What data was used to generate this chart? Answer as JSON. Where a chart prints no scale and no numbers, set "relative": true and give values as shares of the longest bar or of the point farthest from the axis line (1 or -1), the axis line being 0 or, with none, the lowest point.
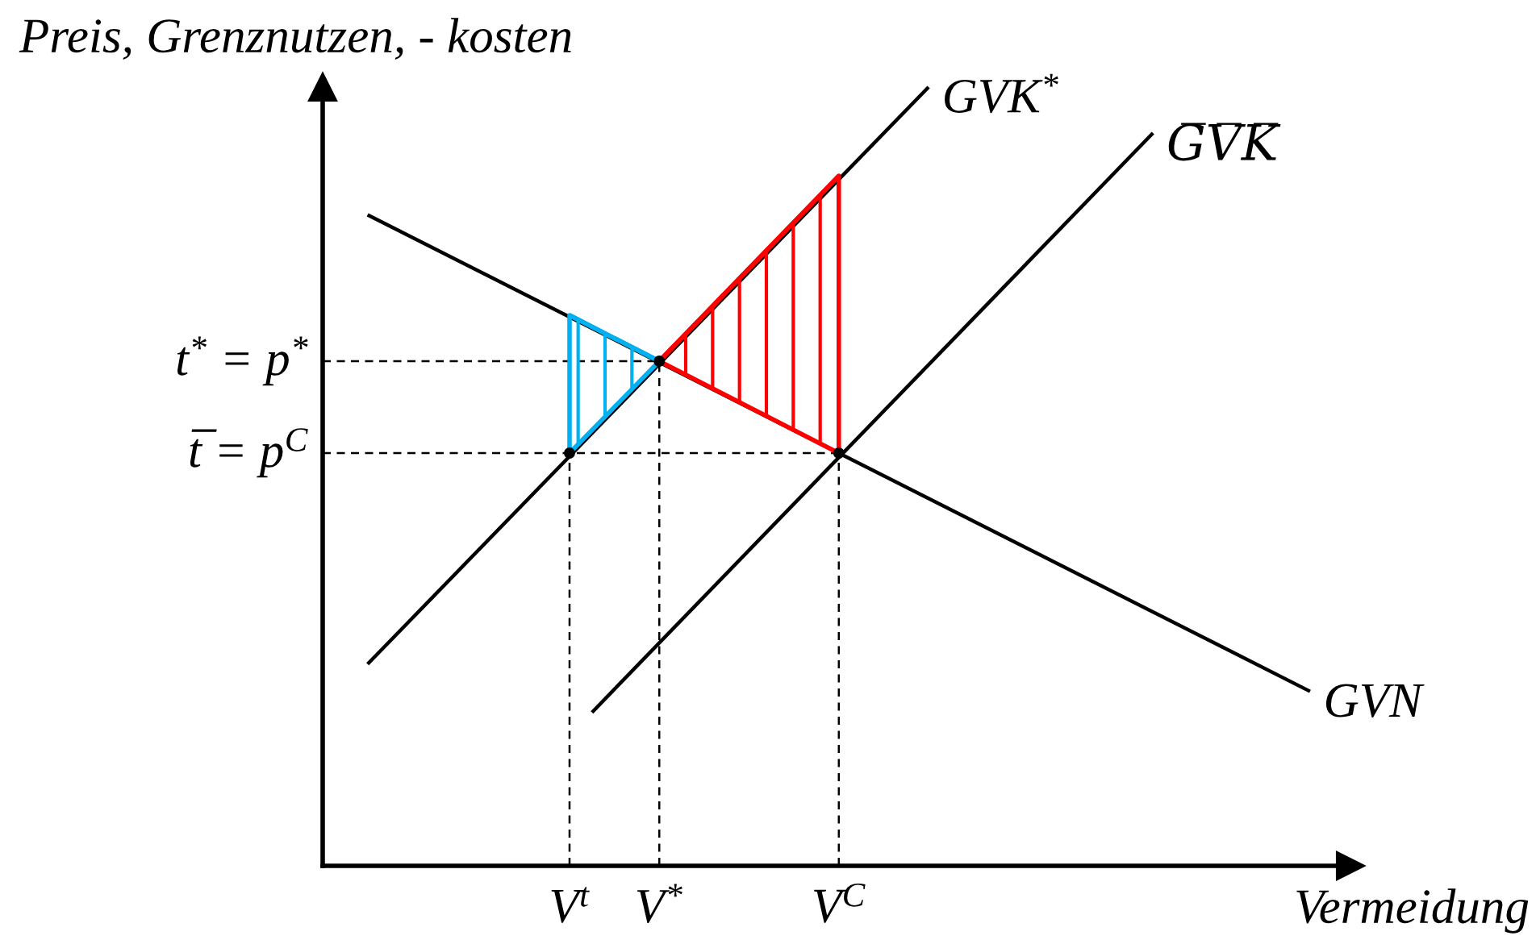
{
  "chart_data": {
    "type": "line",
    "relative": true,
    "line_style": "solid",
    "xlabel": "Vermeidung",
    "ylabel": "Preis, Grenznutzen, - kosten",
    "categories": [
      null,
      null,
      null,
      null,
      null,
      null,
      null,
      null,
      null,
      null,
      null,
      "V$^{t}$",
      null,
      null,
      null,
      "V$^{*}$",
      null,
      null,
      null,
      null,
      null,
      null,
      null,
      "V$^{C}$",
      null,
      null,
      null,
      null,
      null,
      null,
      null,
      null,
      null,
      null,
      null,
      null,
      null,
      null,
      null,
      null,
      null,
      null,
      null,
      null,
      null,
      null
    ],
    "series": [
      {
        "name": "GVN",
        "color": "#000000",
        "values": [
          null,
          null,
          0.836,
          null,
          null,
          null,
          null,
          null,
          null,
          null,
          null,
          null,
          null,
          null,
          null,
          null,
          null,
          null,
          null,
          null,
          null,
          null,
          null,
          null,
          null,
          null,
          null,
          null,
          null,
          null,
          null,
          null,
          null,
          null,
          null,
          null,
          null,
          null,
          null,
          null,
          null,
          null,
          null,
          null,
          0.224,
          null
        ]
      },
      {
        "name": "GVK$^{*}$",
        "color": "#000000",
        "values": [
          null,
          null,
          0.259,
          null,
          null,
          null,
          null,
          null,
          null,
          null,
          null,
          null,
          null,
          null,
          null,
          null,
          null,
          null,
          null,
          null,
          null,
          null,
          null,
          null,
          null,
          null,
          null,
          1.0,
          null,
          null,
          null,
          null,
          null,
          null,
          null,
          null,
          null,
          null,
          null,
          null,
          null,
          null,
          null,
          null,
          null,
          null
        ]
      },
      {
        "name": "G̅V̅K̅",
        "color": "#000000",
        "values": [
          null,
          null,
          null,
          null,
          null,
          null,
          null,
          null,
          null,
          null,
          null,
          null,
          0.197,
          null,
          null,
          null,
          null,
          null,
          null,
          null,
          null,
          null,
          null,
          null,
          null,
          null,
          null,
          null,
          null,
          null,
          null,
          null,
          null,
          null,
          null,
          null,
          null,
          0.941,
          null,
          null,
          null,
          null,
          null,
          null,
          null,
          null
        ]
      },
      {
        "name": "t$^{*}$ = p$^{*}$",
        "line_style": "dashed",
        "color": "#000000",
        "values": [
          0.648,
          null,
          null,
          null,
          null,
          null,
          null,
          null,
          null,
          null,
          null,
          null,
          null,
          null,
          null,
          0.648,
          null,
          null,
          null,
          null,
          null,
          null,
          null,
          null,
          null,
          null,
          null,
          null,
          null,
          null,
          null,
          null,
          null,
          null,
          null,
          null,
          null,
          null,
          null,
          null,
          null,
          null,
          null,
          null,
          null,
          null
        ]
      },
      {
        "name": "t̅ = p$^{C}$",
        "line_style": "dashed",
        "color": "#000000",
        "values": [
          0.53,
          null,
          null,
          null,
          null,
          null,
          null,
          null,
          null,
          null,
          null,
          null,
          null,
          null,
          null,
          null,
          null,
          null,
          null,
          null,
          null,
          null,
          null,
          0.53,
          null,
          null,
          null,
          null,
          null,
          null,
          null,
          null,
          null,
          null,
          null,
          null,
          null,
          null,
          null,
          null,
          null,
          null,
          null,
          null,
          null,
          null
        ]
      },
      {
        "type": "lollipop",
        "line_style": "dashed",
        "marker": "circle",
        "color": "#000000",
        "values": [
          null,
          null,
          null,
          null,
          null,
          null,
          null,
          null,
          null,
          null,
          null,
          0.53,
          null,
          null,
          null,
          0.648,
          null,
          null,
          null,
          null,
          null,
          null,
          null,
          0.53,
          null,
          null,
          null,
          null,
          null,
          null,
          null,
          null,
          null,
          null,
          null,
          null,
          null,
          null,
          null,
          null,
          null,
          null,
          null,
          null,
          null,
          null
        ]
      },
      {
        "type": "line",
        "color": "#00b0f0",
        "values": [
          null,
          null,
          null,
          null,
          null,
          null,
          null,
          null,
          null,
          null,
          null,
          0.707,
          null,
          null,
          null,
          0.648,
          null,
          null,
          null,
          null,
          null,
          null,
          null,
          null,
          null,
          null,
          null,
          null,
          null,
          null,
          null,
          null,
          null,
          null,
          null,
          null,
          null,
          null,
          null,
          null,
          null,
          null,
          null,
          null,
          null,
          null
        ],
        "lower": [
          null,
          null,
          null,
          null,
          null,
          null,
          null,
          null,
          null,
          null,
          null,
          0.53,
          null,
          null,
          null,
          0.648,
          null,
          null,
          null,
          null,
          null,
          null,
          null,
          null,
          null,
          null,
          null,
          null,
          null,
          null,
          null,
          null,
          null,
          null,
          null,
          null,
          null,
          null,
          null,
          null,
          null,
          null,
          null,
          null,
          null,
          null
        ],
        "upper": [
          null,
          null,
          null,
          null,
          null,
          null,
          null,
          null,
          null,
          null,
          null,
          0.707,
          null,
          null,
          null,
          0.648,
          null,
          null,
          null,
          null,
          null,
          null,
          null,
          null,
          null,
          null,
          null,
          null,
          null,
          null,
          null,
          null,
          null,
          null,
          null,
          null,
          null,
          null,
          null,
          null,
          null,
          null,
          null,
          null,
          null,
          null
        ]
      },
      {
        "type": "line",
        "color": "#ff0000",
        "values": [
          null,
          null,
          null,
          null,
          null,
          null,
          null,
          null,
          null,
          null,
          null,
          null,
          null,
          null,
          null,
          0.648,
          null,
          null,
          null,
          null,
          null,
          null,
          null,
          0.886,
          null,
          null,
          null,
          null,
          null,
          null,
          null,
          null,
          null,
          null,
          null,
          null,
          null,
          null,
          null,
          null,
          null,
          null,
          null,
          null,
          null,
          null
        ],
        "lower": [
          null,
          null,
          null,
          null,
          null,
          null,
          null,
          null,
          null,
          null,
          null,
          null,
          null,
          null,
          null,
          0.648,
          null,
          null,
          null,
          null,
          null,
          null,
          null,
          0.53,
          null,
          null,
          null,
          null,
          null,
          null,
          null,
          null,
          null,
          null,
          null,
          null,
          null,
          null,
          null,
          null,
          null,
          null,
          null,
          null,
          null,
          null
        ],
        "upper": [
          null,
          null,
          null,
          null,
          null,
          null,
          null,
          null,
          null,
          null,
          null,
          null,
          null,
          null,
          null,
          0.648,
          null,
          null,
          null,
          null,
          null,
          null,
          null,
          0.886,
          null,
          null,
          null,
          null,
          null,
          null,
          null,
          null,
          null,
          null,
          null,
          null,
          null,
          null,
          null,
          null,
          null,
          null,
          null,
          null,
          null,
          null
        ]
      }
    ]
  }
}
